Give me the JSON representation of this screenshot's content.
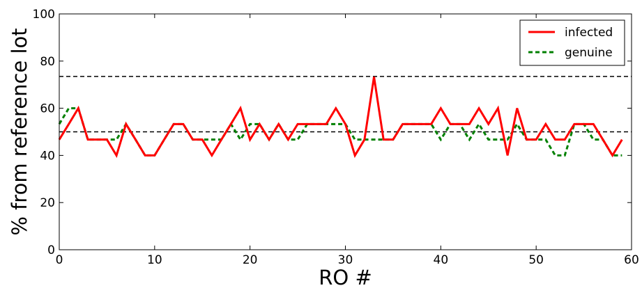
{
  "chart_data": {
    "type": "line",
    "title": "",
    "xlabel": "RO #",
    "ylabel": "% from reference lot",
    "xlim": [
      0,
      60
    ],
    "ylim": [
      0,
      100
    ],
    "x_ticks": [
      0,
      10,
      20,
      30,
      40,
      50,
      60
    ],
    "y_ticks": [
      0,
      20,
      40,
      60,
      80,
      100
    ],
    "grid": false,
    "legend_position": "top-right",
    "x": [
      0,
      1,
      2,
      3,
      4,
      5,
      6,
      7,
      8,
      9,
      10,
      11,
      12,
      13,
      14,
      15,
      16,
      17,
      18,
      19,
      20,
      21,
      22,
      23,
      24,
      25,
      26,
      27,
      28,
      29,
      30,
      31,
      32,
      33,
      34,
      35,
      36,
      37,
      38,
      39,
      40,
      41,
      42,
      43,
      44,
      45,
      46,
      47,
      48,
      49,
      50,
      51,
      52,
      53,
      54,
      55,
      56,
      57,
      58,
      59
    ],
    "series": [
      {
        "name": "infected",
        "color": "#ff0000",
        "style": "solid",
        "values": [
          46.7,
          53.3,
          60,
          46.7,
          46.7,
          46.7,
          40,
          53.3,
          46.7,
          40,
          40,
          46.7,
          53.3,
          53.3,
          46.7,
          46.7,
          40,
          46.7,
          53.3,
          60,
          46.7,
          53.3,
          46.7,
          53.3,
          46.7,
          53.3,
          53.3,
          53.3,
          53.3,
          60,
          53.3,
          40,
          46.7,
          73.3,
          46.7,
          46.7,
          53.3,
          53.3,
          53.3,
          53.3,
          60,
          53.3,
          53.3,
          53.3,
          60,
          53.3,
          60,
          40,
          60,
          46.7,
          46.7,
          53.3,
          46.7,
          46.7,
          53.3,
          53.3,
          53.3,
          46.7,
          40,
          46.7
        ]
      },
      {
        "name": "genuine",
        "color": "#008000",
        "style": "dashed",
        "values": [
          53.3,
          60,
          60,
          46.7,
          46.7,
          46.7,
          46.7,
          53.3,
          46.7,
          40,
          40,
          46.7,
          53.3,
          53.3,
          46.7,
          46.7,
          46.7,
          46.7,
          53.3,
          46.7,
          53.3,
          53.3,
          46.7,
          53.3,
          46.7,
          46.7,
          53.3,
          53.3,
          53.3,
          53.3,
          53.3,
          46.7,
          46.7,
          46.7,
          46.7,
          46.7,
          53.3,
          53.3,
          53.3,
          53.3,
          46.7,
          53.3,
          53.3,
          46.7,
          53.3,
          46.7,
          46.7,
          46.7,
          53.3,
          46.7,
          46.7,
          46.7,
          40,
          40,
          53.3,
          53.3,
          46.7,
          46.7,
          40,
          40
        ]
      }
    ],
    "reference_lines": [
      {
        "y": 73.5,
        "color": "#000000",
        "style": "dashed"
      },
      {
        "y": 50,
        "color": "#000000",
        "style": "dashed"
      }
    ]
  }
}
